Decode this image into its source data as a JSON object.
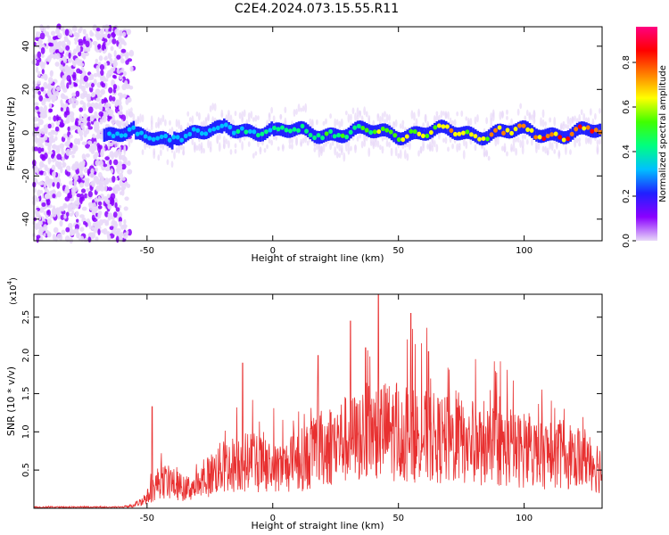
{
  "title": "C2E4.2024.073.15.55.R11",
  "chart_data": [
    {
      "type": "heatmap",
      "xlabel": "Height of straight line (km)",
      "ylabel": "Frequency (Hz)",
      "xlim": [
        -95,
        131
      ],
      "ylim": [
        -50,
        49
      ],
      "x_ticks": [
        -50,
        0,
        50,
        100
      ],
      "y_ticks": [
        -40,
        -20,
        0,
        20,
        40
      ],
      "colorbar": {
        "label": "Normalized spectral amplitude",
        "range": [
          0.0,
          0.96
        ],
        "ticks": [
          0.0,
          0.2,
          0.4,
          0.6,
          0.8
        ],
        "colormap": [
          "#e8d8f8",
          "#8a00ff",
          "#2020ff",
          "#00c0ff",
          "#00ff80",
          "#40ff00",
          "#ffff00",
          "#ff8000",
          "#ff0000",
          "#ff0080"
        ]
      },
      "regions": {
        "broadband_noise_x": [
          -95,
          -55
        ],
        "signal_band_center_hz": 0,
        "signal_band_halfwidth_hz": 5
      },
      "grid": false
    },
    {
      "type": "line",
      "xlabel": "Height of straight line (km)",
      "ylabel": "SNR (10 * v/v)",
      "y_multiplier": "(x10",
      "y_multiplier_exp": "4",
      "xlim": [
        -95,
        131
      ],
      "ylim": [
        0,
        2.8
      ],
      "x_ticks": [
        -50,
        0,
        50,
        100
      ],
      "y_ticks": [
        0.5,
        1.0,
        1.5,
        2.0,
        2.5
      ],
      "y_tick_labels": [
        "0.5",
        "1.0",
        "1.5",
        "2.0",
        "2.5"
      ],
      "series": [
        {
          "color": "#e83030",
          "envelope_x": [
            -95,
            -60,
            -55,
            -50,
            -45,
            -40,
            -35,
            -30,
            -25,
            -20,
            -15,
            -10,
            -5,
            0,
            5,
            10,
            15,
            20,
            25,
            30,
            35,
            40,
            45,
            50,
            55,
            60,
            65,
            70,
            75,
            80,
            85,
            90,
            95,
            100,
            105,
            110,
            115,
            120,
            125,
            131
          ],
          "envelope_y": [
            0.02,
            0.02,
            0.05,
            0.2,
            0.5,
            0.45,
            0.35,
            0.4,
            0.6,
            0.75,
            0.8,
            0.85,
            0.8,
            0.7,
            0.75,
            0.85,
            0.95,
            1.1,
            1.2,
            1.25,
            1.3,
            1.45,
            1.4,
            1.35,
            1.3,
            1.3,
            1.25,
            1.2,
            1.2,
            1.15,
            1.15,
            1.1,
            1.05,
            1.05,
            1.0,
            0.98,
            0.97,
            0.95,
            0.92,
            0.7
          ],
          "peaks": [
            {
              "x": 42,
              "y": 2.8
            },
            {
              "x": 55,
              "y": 2.55
            },
            {
              "x": 31,
              "y": 2.45
            },
            {
              "x": -12,
              "y": 1.9
            },
            {
              "x": 18,
              "y": 2.0
            },
            {
              "x": -48,
              "y": 1.33
            },
            {
              "x": 62,
              "y": 2.05
            },
            {
              "x": 37,
              "y": 2.1
            }
          ]
        }
      ],
      "grid": false
    }
  ]
}
